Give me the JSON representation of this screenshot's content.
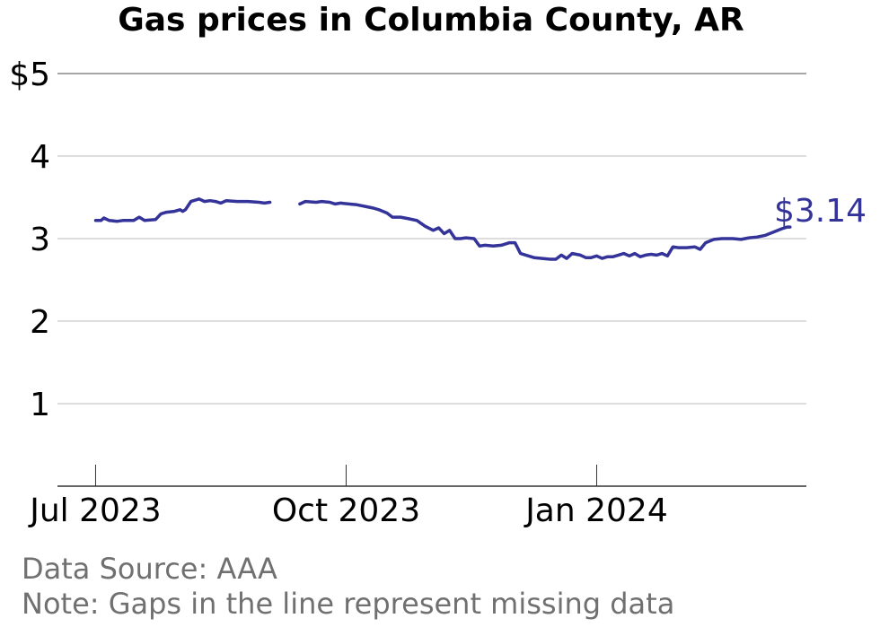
{
  "chart_data": {
    "type": "line",
    "title": "Gas prices in Columbia County, AR",
    "xlabel": "",
    "ylabel": "",
    "x_range": [
      "2023-06-17",
      "2024-03-18"
    ],
    "ylim": [
      0,
      5
    ],
    "y_ticks": [
      {
        "value": 1,
        "label": "1"
      },
      {
        "value": 2,
        "label": "2"
      },
      {
        "value": 3,
        "label": "3"
      },
      {
        "value": 4,
        "label": "4"
      },
      {
        "value": 5,
        "label": "$5"
      }
    ],
    "x_ticks": [
      {
        "date": "2023-07-01",
        "label": "Jul 2023"
      },
      {
        "date": "2023-10-01",
        "label": "Oct 2023"
      },
      {
        "date": "2024-01-01",
        "label": "Jan 2024"
      }
    ],
    "grid": "horizontal",
    "legend": "none",
    "line_color": "#333399",
    "end_label": "$3.14",
    "series": [
      {
        "segments": [
          [
            [
              "2023-07-01",
              3.22
            ],
            [
              "2023-07-03",
              3.22
            ],
            [
              "2023-07-04",
              3.25
            ],
            [
              "2023-07-06",
              3.22
            ],
            [
              "2023-07-09",
              3.21
            ],
            [
              "2023-07-11",
              3.22
            ],
            [
              "2023-07-15",
              3.22
            ],
            [
              "2023-07-17",
              3.26
            ],
            [
              "2023-07-19",
              3.22
            ],
            [
              "2023-07-23",
              3.23
            ],
            [
              "2023-07-25",
              3.3
            ],
            [
              "2023-07-27",
              3.32
            ],
            [
              "2023-07-30",
              3.33
            ],
            [
              "2023-08-01",
              3.35
            ],
            [
              "2023-08-02",
              3.33
            ],
            [
              "2023-08-03",
              3.35
            ],
            [
              "2023-08-05",
              3.45
            ],
            [
              "2023-08-08",
              3.48
            ],
            [
              "2023-08-10",
              3.45
            ],
            [
              "2023-08-12",
              3.46
            ],
            [
              "2023-08-14",
              3.45
            ],
            [
              "2023-08-16",
              3.43
            ],
            [
              "2023-08-18",
              3.46
            ],
            [
              "2023-08-22",
              3.45
            ],
            [
              "2023-08-26",
              3.45
            ],
            [
              "2023-08-30",
              3.44
            ],
            [
              "2023-09-01",
              3.43
            ],
            [
              "2023-09-03",
              3.44
            ]
          ],
          [
            [
              "2023-09-14",
              3.42
            ],
            [
              "2023-09-16",
              3.45
            ],
            [
              "2023-09-20",
              3.44
            ],
            [
              "2023-09-22",
              3.45
            ],
            [
              "2023-09-25",
              3.44
            ],
            [
              "2023-09-27",
              3.42
            ],
            [
              "2023-09-29",
              3.43
            ],
            [
              "2023-10-02",
              3.42
            ],
            [
              "2023-10-05",
              3.41
            ],
            [
              "2023-10-08",
              3.39
            ],
            [
              "2023-10-11",
              3.37
            ],
            [
              "2023-10-13",
              3.35
            ],
            [
              "2023-10-16",
              3.31
            ],
            [
              "2023-10-18",
              3.26
            ],
            [
              "2023-10-21",
              3.26
            ],
            [
              "2023-10-24",
              3.24
            ],
            [
              "2023-10-27",
              3.22
            ],
            [
              "2023-10-30",
              3.15
            ],
            [
              "2023-11-02",
              3.1
            ],
            [
              "2023-11-04",
              3.13
            ],
            [
              "2023-11-06",
              3.06
            ],
            [
              "2023-11-08",
              3.1
            ],
            [
              "2023-11-10",
              3.0
            ],
            [
              "2023-11-12",
              3.0
            ],
            [
              "2023-11-14",
              3.01
            ],
            [
              "2023-11-17",
              3.0
            ],
            [
              "2023-11-19",
              2.91
            ],
            [
              "2023-11-21",
              2.92
            ],
            [
              "2023-11-24",
              2.91
            ],
            [
              "2023-11-27",
              2.92
            ],
            [
              "2023-11-30",
              2.95
            ],
            [
              "2023-12-02",
              2.95
            ],
            [
              "2023-12-04",
              2.82
            ],
            [
              "2023-12-06",
              2.8
            ],
            [
              "2023-12-09",
              2.77
            ],
            [
              "2023-12-12",
              2.76
            ],
            [
              "2023-12-15",
              2.75
            ],
            [
              "2023-12-17",
              2.75
            ],
            [
              "2023-12-19",
              2.8
            ],
            [
              "2023-12-21",
              2.76
            ],
            [
              "2023-12-23",
              2.82
            ],
            [
              "2023-12-26",
              2.8
            ],
            [
              "2023-12-28",
              2.77
            ],
            [
              "2023-12-30",
              2.77
            ],
            [
              "2024-01-01",
              2.79
            ],
            [
              "2024-01-03",
              2.76
            ],
            [
              "2024-01-05",
              2.78
            ],
            [
              "2024-01-07",
              2.78
            ],
            [
              "2024-01-09",
              2.8
            ],
            [
              "2024-01-11",
              2.82
            ],
            [
              "2024-01-13",
              2.79
            ],
            [
              "2024-01-15",
              2.82
            ],
            [
              "2024-01-17",
              2.78
            ],
            [
              "2024-01-19",
              2.8
            ],
            [
              "2024-01-21",
              2.81
            ],
            [
              "2024-01-23",
              2.8
            ],
            [
              "2024-01-25",
              2.82
            ],
            [
              "2024-01-27",
              2.79
            ],
            [
              "2024-01-29",
              2.9
            ],
            [
              "2024-01-31",
              2.89
            ],
            [
              "2024-02-03",
              2.89
            ],
            [
              "2024-02-06",
              2.9
            ],
            [
              "2024-02-08",
              2.87
            ],
            [
              "2024-02-10",
              2.95
            ],
            [
              "2024-02-13",
              2.99
            ],
            [
              "2024-02-16",
              3.0
            ],
            [
              "2024-02-20",
              3.0
            ],
            [
              "2024-02-23",
              2.99
            ],
            [
              "2024-02-26",
              3.01
            ],
            [
              "2024-02-29",
              3.02
            ],
            [
              "2024-03-03",
              3.04
            ],
            [
              "2024-03-06",
              3.08
            ],
            [
              "2024-03-09",
              3.12
            ],
            [
              "2024-03-11",
              3.14
            ],
            [
              "2024-03-12",
              3.14
            ]
          ]
        ]
      }
    ]
  },
  "footer": {
    "source": "Data Source: AAA",
    "note": "Note: Gaps in the line represent missing data"
  }
}
